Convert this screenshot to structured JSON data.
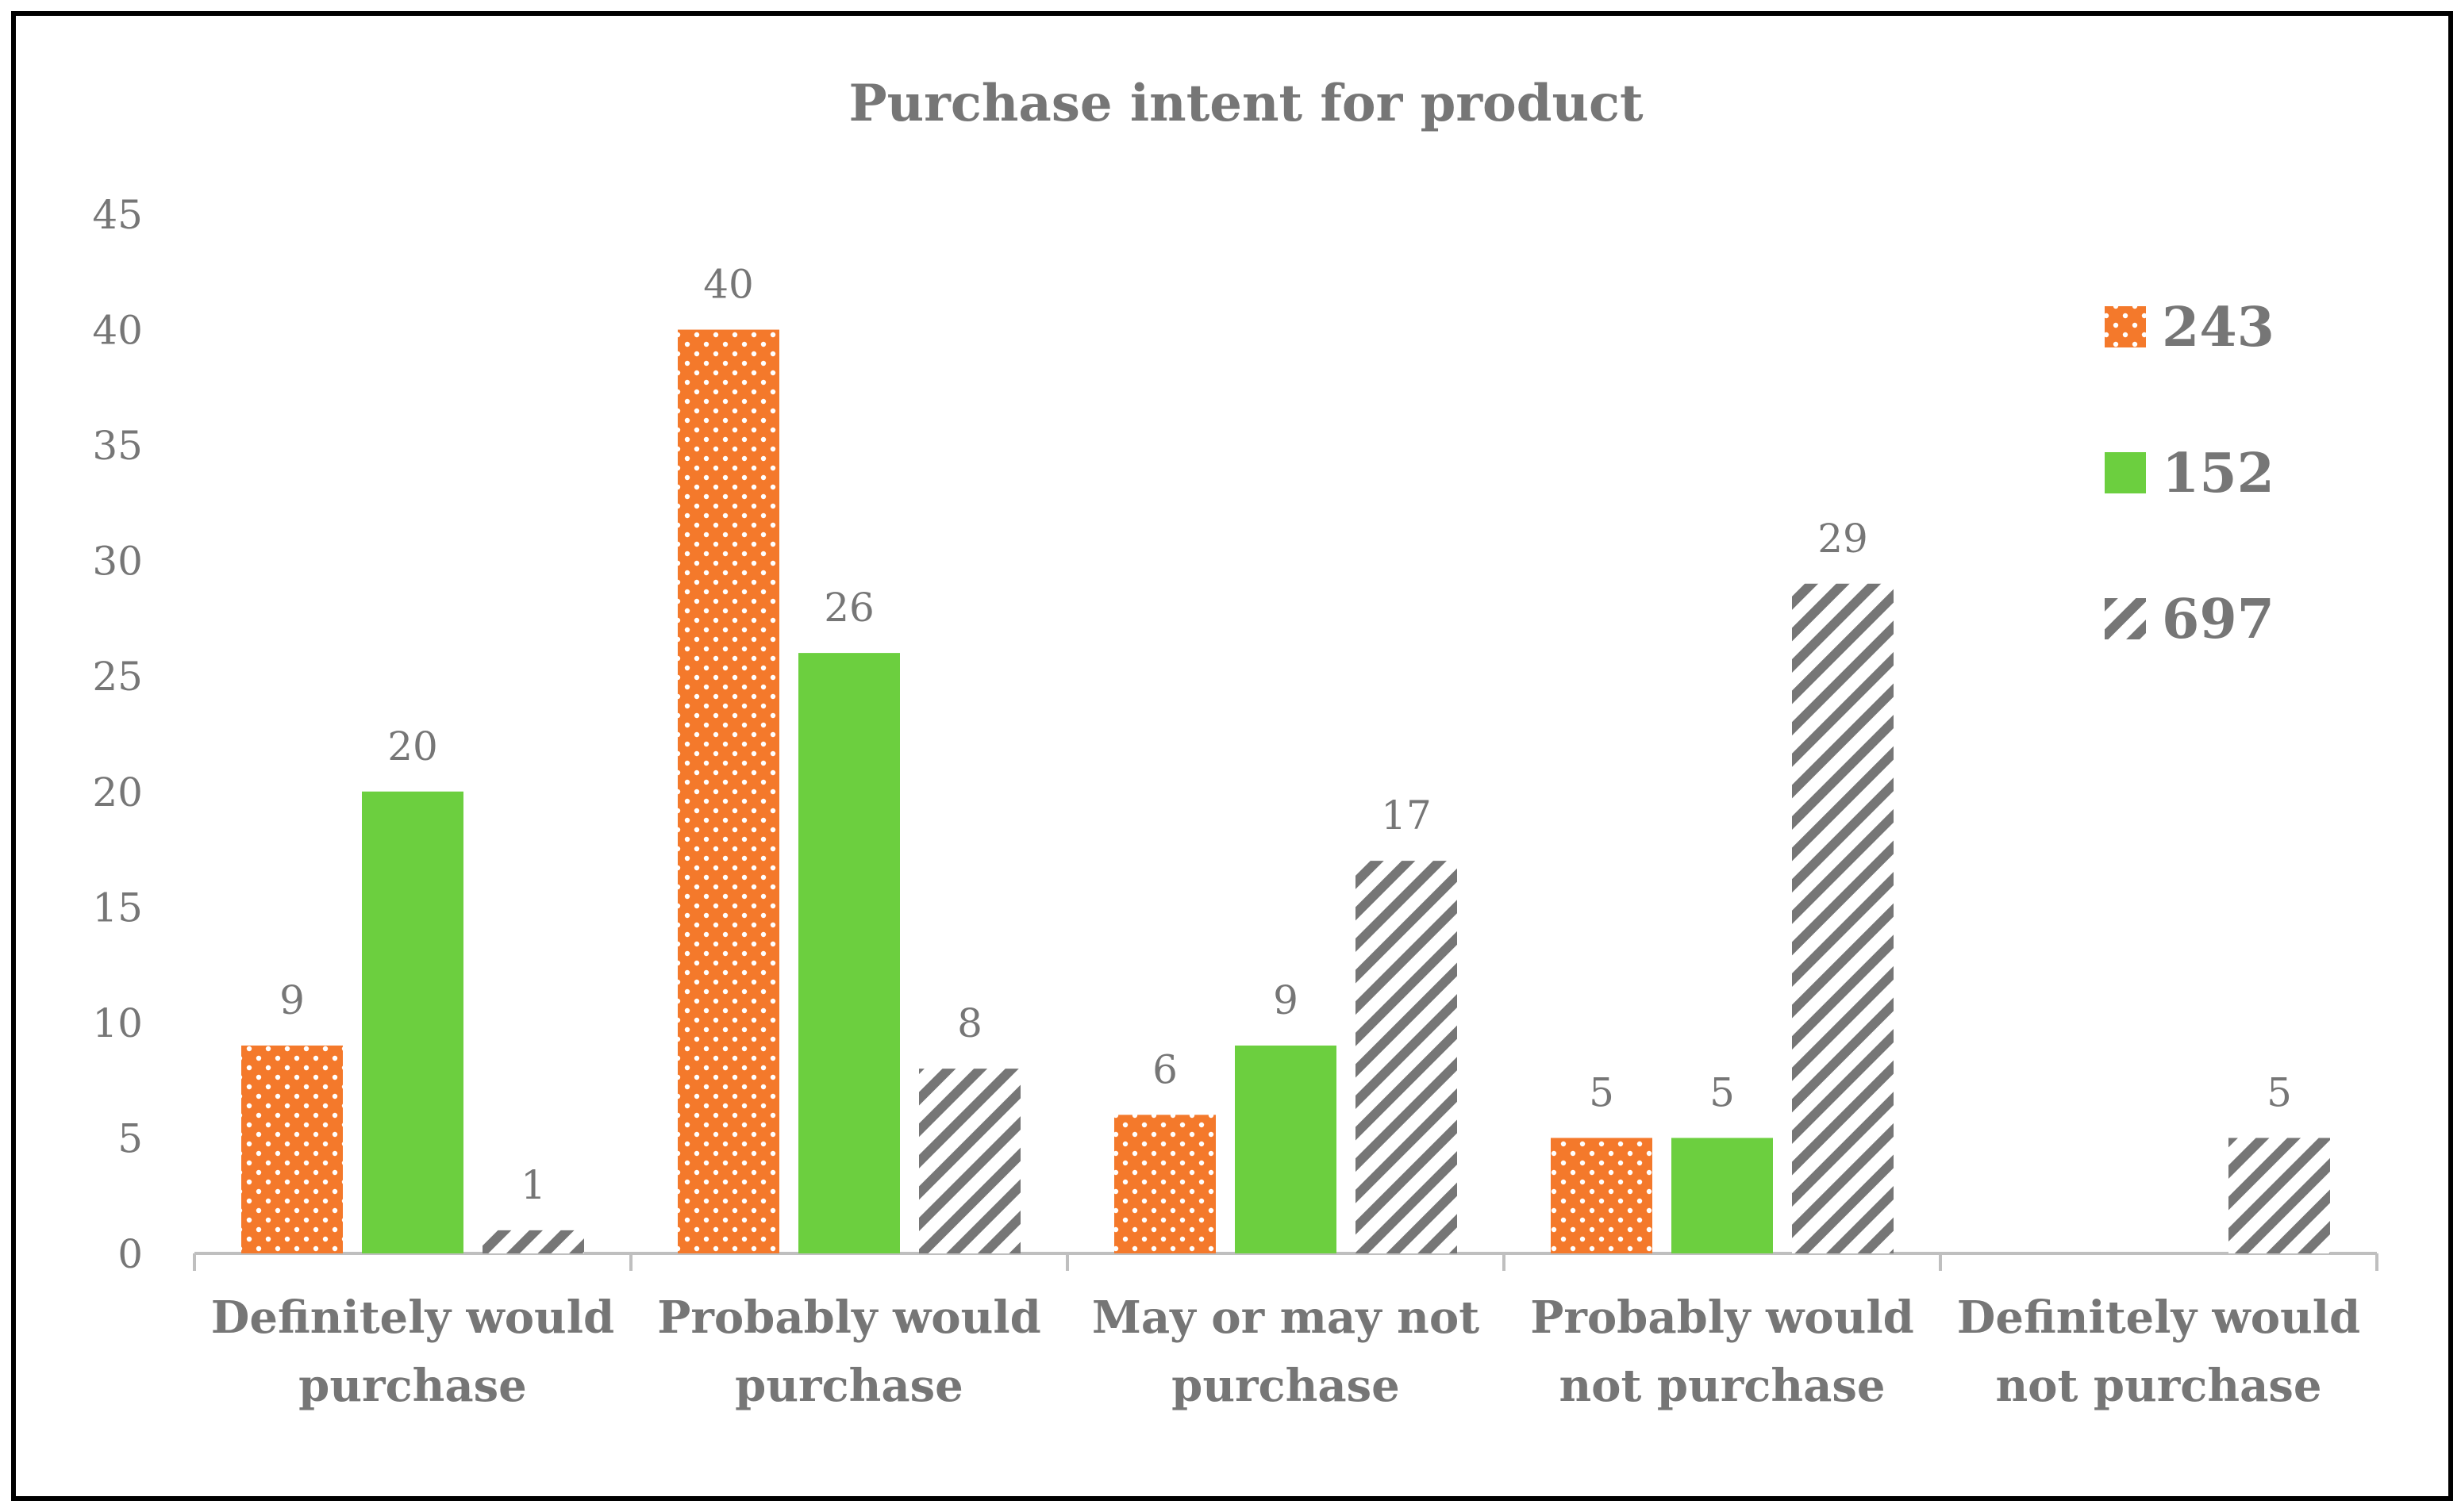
{
  "chart_data": {
    "type": "bar",
    "title": "Purchase intent for product",
    "xlabel": "",
    "ylabel": "",
    "ylim": [
      0,
      45
    ],
    "yticks": [
      0,
      5,
      10,
      15,
      20,
      25,
      30,
      35,
      40,
      45
    ],
    "grid": false,
    "legend_position": "top-right",
    "categories": [
      [
        "Definitely would",
        "purchase"
      ],
      [
        "Probably would",
        "purchase"
      ],
      [
        "May or may not",
        "purchase"
      ],
      [
        "Probably would",
        "not purchase"
      ],
      [
        "Definitely would",
        "not purchase"
      ]
    ],
    "series": [
      {
        "name": "243",
        "values": [
          9,
          40,
          6,
          5,
          null
        ],
        "labels": [
          "9",
          "40",
          "6",
          "5",
          ""
        ],
        "color": "#F4792B",
        "pattern": "dots"
      },
      {
        "name": "152",
        "values": [
          20,
          26,
          9,
          5,
          null
        ],
        "labels": [
          "20",
          "26",
          "9",
          "5",
          ""
        ],
        "color": "#6CCF3F",
        "pattern": "solid"
      },
      {
        "name": "697",
        "values": [
          1,
          8,
          17,
          29,
          5
        ],
        "labels": [
          "1",
          "8",
          "17",
          "29",
          "5"
        ],
        "color": "#767676",
        "pattern": "diagonal-stripes"
      }
    ]
  },
  "colors": {
    "text": "#767676",
    "axis": "#bfbfbf"
  }
}
